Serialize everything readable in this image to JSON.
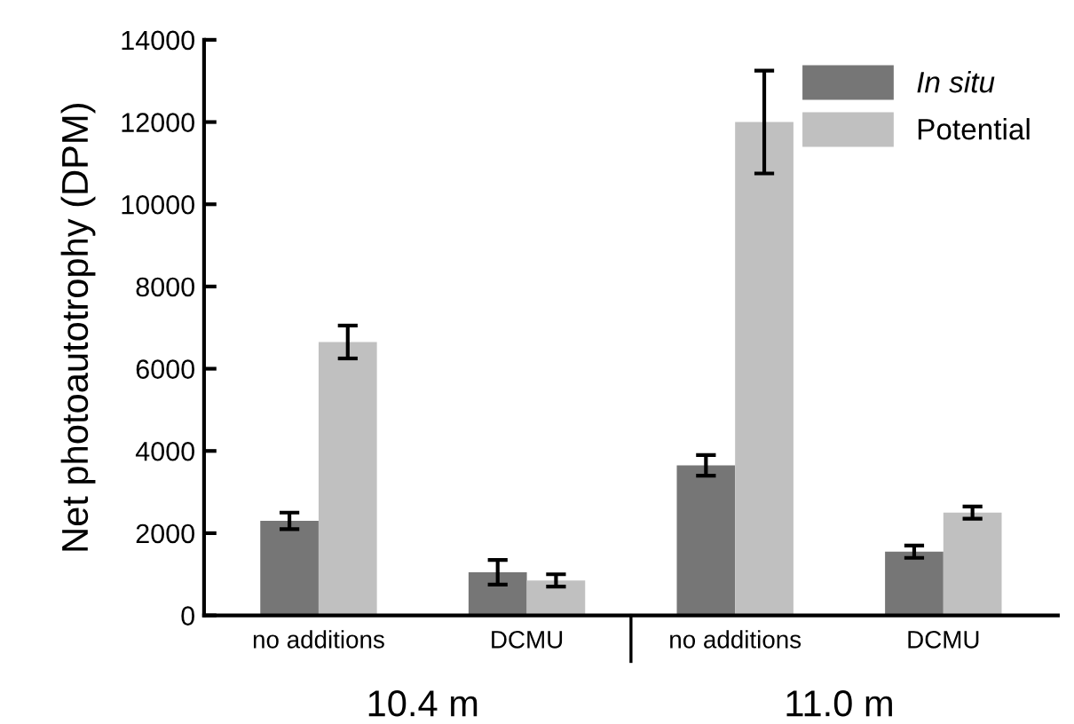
{
  "chart_data": {
    "type": "bar",
    "ylabel": "Net photoautotrophy (DPM)",
    "categories": [
      "no additions",
      "DCMU",
      "no additions",
      "DCMU"
    ],
    "series": [
      {
        "name": "In situ",
        "color": "#767676",
        "values": [
          2300,
          1050,
          3650,
          1550
        ],
        "errors": [
          200,
          300,
          250,
          150
        ]
      },
      {
        "name": "Potential",
        "color": "#c0c0c0",
        "values": [
          6650,
          850,
          12000,
          2500
        ],
        "errors": [
          400,
          150,
          1250,
          150
        ]
      }
    ],
    "ylim": [
      0,
      14000
    ],
    "yticks": [
      0,
      2000,
      4000,
      6000,
      8000,
      10000,
      12000,
      14000
    ],
    "grid": false,
    "legend": "top right",
    "annotations": [
      "10.4 m",
      "11.0 m"
    ]
  }
}
